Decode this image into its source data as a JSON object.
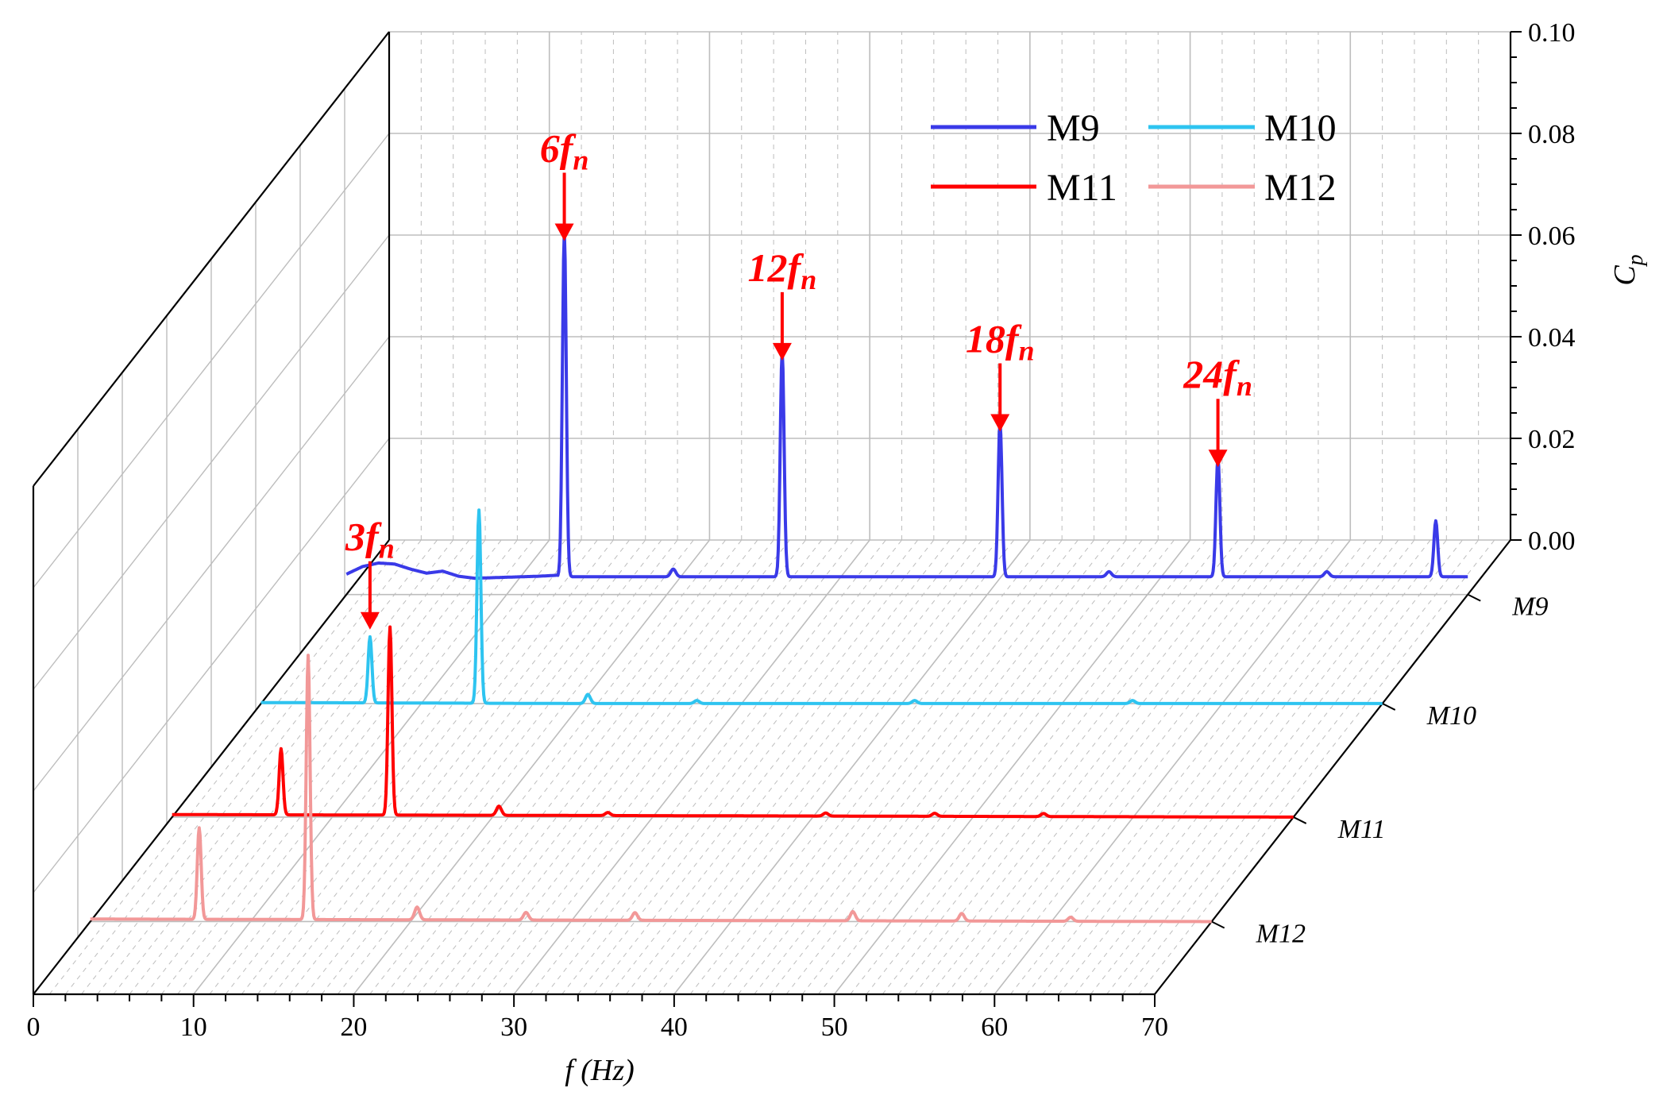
{
  "chart_data": {
    "type": "line",
    "style": "3d-waterfall",
    "title": "",
    "xlabel": "f (Hz)",
    "xlabel_main": "f",
    "xlabel_unit": " (Hz)",
    "ylabel": "C_p",
    "ylabel_main": "C",
    "ylabel_sub": "p",
    "xlim": [
      0,
      70
    ],
    "ylim": [
      0,
      0.1
    ],
    "x_ticks": [
      "0",
      "10",
      "20",
      "30",
      "40",
      "50",
      "60",
      "70"
    ],
    "y_ticks": [
      "0.00",
      "0.02",
      "0.04",
      "0.06",
      "0.08",
      "0.10"
    ],
    "depth_categories": [
      "M9",
      "M10",
      "M11",
      "M12"
    ],
    "legend_position": "top-right",
    "colors": {
      "M9": "#3a3ae8",
      "M10": "#2ec4f0",
      "M11": "#ff0000",
      "M12": "#f29898",
      "annotation": "#ff0000",
      "grid": "#bdbdbd",
      "axis": "#000000"
    },
    "series": [
      {
        "name": "M9",
        "baseline": 0.0035,
        "points": [
          [
            0,
            0.004
          ],
          [
            1,
            0.0055
          ],
          [
            2,
            0.0062
          ],
          [
            3,
            0.006
          ],
          [
            4,
            0.005
          ],
          [
            5,
            0.0042
          ],
          [
            6,
            0.0046
          ],
          [
            7,
            0.0036
          ],
          [
            8,
            0.0032
          ],
          [
            10,
            0.0034
          ],
          [
            12,
            0.0036
          ],
          [
            13.2,
            0.0038
          ]
        ],
        "peaks": [
          {
            "x": 13.6,
            "y": 0.068
          },
          {
            "x": 27.2,
            "y": 0.0445
          },
          {
            "x": 40.8,
            "y": 0.0305
          },
          {
            "x": 54.4,
            "y": 0.0235
          },
          {
            "x": 68.0,
            "y": 0.011
          }
        ],
        "minor_peaks": [
          [
            20.4,
            0.0015
          ],
          [
            47.6,
            0.001
          ],
          [
            61.2,
            0.001
          ]
        ]
      },
      {
        "name": "M10",
        "baseline": 0.0,
        "points": [
          [
            0,
            0.0002
          ],
          [
            20,
            0.0
          ],
          [
            70,
            0.0
          ]
        ],
        "peaks": [
          {
            "x": 6.8,
            "y": 0.013
          },
          {
            "x": 13.6,
            "y": 0.038
          }
        ],
        "minor_peaks": [
          [
            20.4,
            0.0018
          ],
          [
            27.2,
            0.0006
          ],
          [
            40.8,
            0.0006
          ],
          [
            54.4,
            0.0006
          ]
        ]
      },
      {
        "name": "M11",
        "baseline": 0.0,
        "points": [
          [
            0,
            0.0005
          ],
          [
            70,
            0.0
          ]
        ],
        "peaks": [
          {
            "x": 6.8,
            "y": 0.013
          },
          {
            "x": 13.6,
            "y": 0.037
          }
        ],
        "minor_peaks": [
          [
            20.4,
            0.0018
          ],
          [
            27.2,
            0.0006
          ],
          [
            40.8,
            0.0006
          ],
          [
            47.6,
            0.0006
          ],
          [
            54.4,
            0.0006
          ]
        ]
      },
      {
        "name": "M12",
        "baseline": 0.0,
        "points": [
          [
            0,
            0.0005
          ],
          [
            70,
            0.0
          ]
        ],
        "peaks": [
          {
            "x": 6.8,
            "y": 0.018
          },
          {
            "x": 13.6,
            "y": 0.052
          }
        ],
        "minor_peaks": [
          [
            20.4,
            0.0025
          ],
          [
            27.2,
            0.0015
          ],
          [
            34.0,
            0.0015
          ],
          [
            47.6,
            0.0018
          ],
          [
            54.4,
            0.0015
          ],
          [
            61.2,
            0.0008
          ]
        ]
      }
    ],
    "annotations": [
      {
        "main": "3",
        "sub": "n",
        "series": "M10",
        "x": 6.8,
        "y": 0.013
      },
      {
        "main": "6",
        "sub": "n",
        "series": "M9",
        "x": 13.6,
        "y": 0.068
      },
      {
        "main": "12",
        "sub": "n",
        "series": "M9",
        "x": 27.2,
        "y": 0.0445
      },
      {
        "main": "18",
        "sub": "n",
        "series": "M9",
        "x": 40.8,
        "y": 0.0305
      },
      {
        "main": "24",
        "sub": "n",
        "series": "M9",
        "x": 54.4,
        "y": 0.0235
      }
    ],
    "annotation_letter": "f"
  }
}
